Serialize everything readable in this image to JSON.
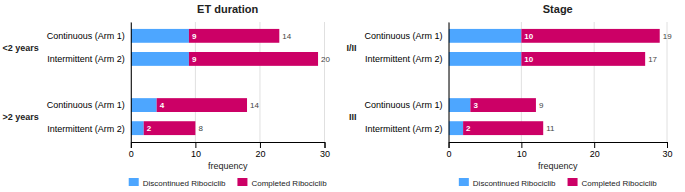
{
  "chart_data": [
    {
      "type": "bar",
      "orientation": "horizontal",
      "stacked": true,
      "data_labels": true,
      "grid": true,
      "legend": "bottom",
      "title": "ET duration",
      "xlabel": "frequency",
      "groups": [
        "<2 years",
        ">2 years"
      ],
      "categories": [
        "Continuous (Arm 1)",
        "Intermittent (Arm 2)",
        "Continuous (Arm 1)",
        "Intermittent (Arm 2)"
      ],
      "series": [
        {
          "name": "Discontinued Ribociclib",
          "color": "#4da6ff",
          "values": [
            9,
            9,
            4,
            2
          ]
        },
        {
          "name": "Completed Ribociclib",
          "color": "#cc0066",
          "values": [
            14,
            20,
            14,
            8
          ]
        }
      ],
      "xlim": [
        0,
        30
      ],
      "xticks": [
        0,
        10,
        20,
        30
      ]
    },
    {
      "type": "bar",
      "orientation": "horizontal",
      "stacked": true,
      "data_labels": true,
      "grid": true,
      "legend": "bottom",
      "title": "Stage",
      "xlabel": "frequency",
      "groups": [
        "I/II",
        "III"
      ],
      "categories": [
        "Continuous (Arm 1)",
        "Intermittent (Arm 2)",
        "Continuous (Arm 1)",
        "Intermittent (Arm 2)"
      ],
      "series": [
        {
          "name": "Discontinued Ribociclib",
          "color": "#4da6ff",
          "values": [
            10,
            10,
            3,
            2
          ]
        },
        {
          "name": "Completed Ribociclib",
          "color": "#cc0066",
          "values": [
            19,
            17,
            9,
            11
          ]
        }
      ],
      "xlim": [
        0,
        30
      ],
      "xticks": [
        0,
        10,
        20,
        30
      ]
    }
  ]
}
